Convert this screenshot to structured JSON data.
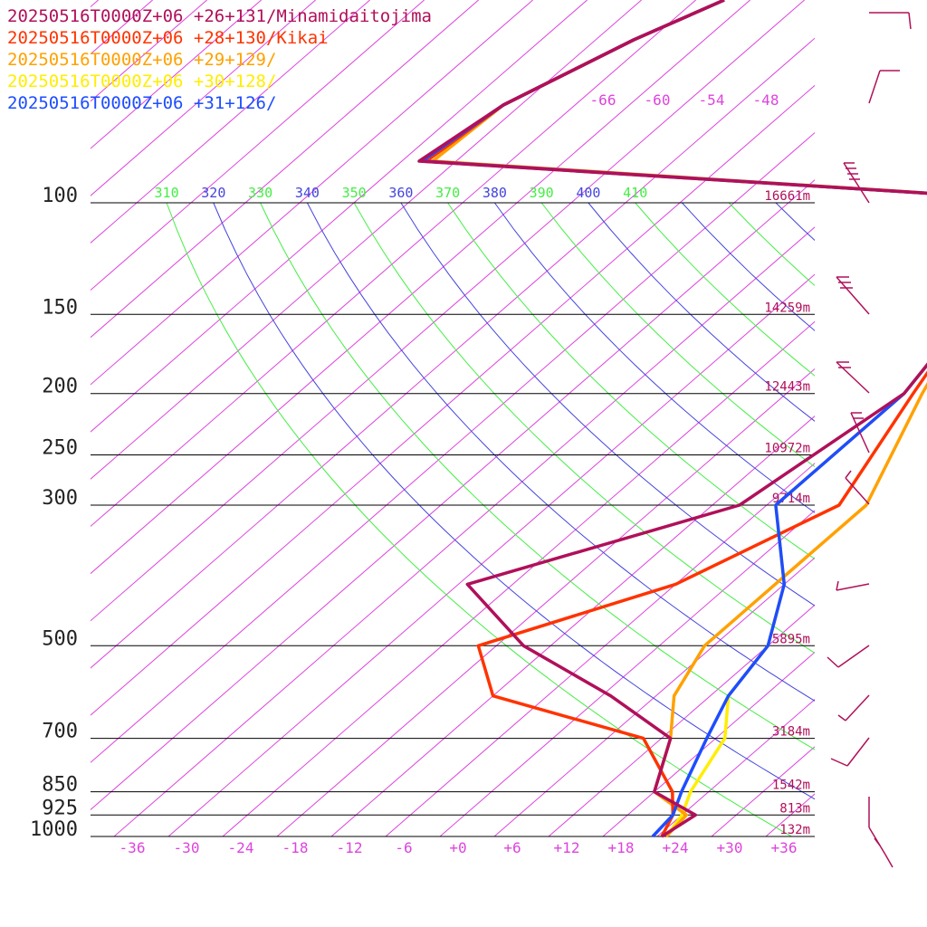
{
  "chart_data": {
    "type": "line",
    "subtype": "skew-T log-p sounding",
    "legend_placement": "top-left",
    "series": [
      {
        "name": "20250516T0000Z+06 +26+131/Minamidaitojima",
        "color": "#b0105a",
        "temperature": [
          [
            1000,
            22.5
          ],
          [
            925,
            23.5
          ],
          [
            850,
            16
          ],
          [
            700,
            11
          ],
          [
            600,
            -1
          ],
          [
            500,
            -17
          ],
          [
            400,
            -31
          ],
          [
            300,
            -11
          ],
          [
            200,
            -7
          ],
          [
            150,
            -10
          ],
          [
            100,
            -12
          ]
        ]
      },
      {
        "name": "20250516T0000Z+06 +28+130/Kikai",
        "color": "#ff3300",
        "temperature": [
          [
            1000,
            22.5
          ],
          [
            925,
            21
          ],
          [
            850,
            18
          ],
          [
            700,
            8
          ],
          [
            600,
            -14
          ],
          [
            500,
            -22
          ],
          [
            400,
            -8
          ],
          [
            300,
            0
          ],
          [
            200,
            -6
          ],
          [
            150,
            -10
          ],
          [
            100,
            -12
          ]
        ]
      },
      {
        "name": "20250516T0000Z+06 +29+129/",
        "color": "#ffa100",
        "temperature": [
          [
            1000,
            23
          ],
          [
            925,
            22.5
          ],
          [
            850,
            16
          ],
          [
            700,
            11
          ],
          [
            600,
            6
          ],
          [
            500,
            3
          ],
          [
            400,
            3
          ],
          [
            300,
            3
          ],
          [
            200,
            -5
          ],
          [
            150,
            -10
          ],
          [
            100,
            -12
          ]
        ]
      },
      {
        "name": "20250516T0000Z+06 +30+128/",
        "color": "#ffee00",
        "temperature": [
          [
            1000,
            23
          ],
          [
            925,
            22
          ],
          [
            850,
            20
          ],
          [
            700,
            17
          ],
          [
            600,
            12
          ],
          [
            500,
            10
          ],
          [
            400,
            4
          ],
          [
            300,
            -7
          ],
          [
            200,
            -7
          ],
          [
            150,
            -10
          ],
          [
            100,
            -12
          ]
        ]
      },
      {
        "name": "20250516T0000Z+06 +31+126/",
        "color": "#1e4dff",
        "temperature": [
          [
            1000,
            21.5
          ],
          [
            925,
            21
          ],
          [
            850,
            19
          ],
          [
            700,
            15
          ],
          [
            600,
            12
          ],
          [
            500,
            10
          ],
          [
            400,
            4
          ],
          [
            300,
            -7
          ],
          [
            200,
            -7
          ],
          [
            150,
            -10
          ],
          [
            100,
            -12
          ]
        ]
      }
    ],
    "upper_trace_color": "#1e4dff",
    "pressure_levels": [
      {
        "p": 100,
        "label": "100",
        "height": "16661m"
      },
      {
        "p": 150,
        "label": "150",
        "height": "14259m"
      },
      {
        "p": 200,
        "label": "200",
        "height": "12443m"
      },
      {
        "p": 250,
        "label": "250",
        "height": "10972m"
      },
      {
        "p": 300,
        "label": "300",
        "height": "9714m"
      },
      {
        "p": 500,
        "label": "500",
        "height": "5895m"
      },
      {
        "p": 700,
        "label": "700",
        "height": "3184m"
      },
      {
        "p": 850,
        "label": "850",
        "height": "1542m"
      },
      {
        "p": 925,
        "label": "925",
        "height": "813m"
      },
      {
        "p": 1000,
        "label": "1000",
        "height": "132m"
      }
    ],
    "x_ticks": [
      "-36",
      "-30",
      "-24",
      "-18",
      "-12",
      "-6",
      "+0",
      "+6",
      "+12",
      "+18",
      "+24",
      "+30",
      "+36"
    ],
    "xlim": [
      -40,
      40
    ],
    "ylim": [
      1000,
      100
    ],
    "y_scale": "log",
    "upper_temp_labels": [
      "-66",
      "-60",
      "-54",
      "-48"
    ],
    "theta_labels": [
      "310",
      "320",
      "330",
      "340",
      "350",
      "360",
      "370",
      "380",
      "390",
      "400",
      "410"
    ],
    "colors": {
      "isotherm": "#dd44dd",
      "theta_green": "#44ee44",
      "theta_blue": "#4444dd",
      "isobar": "#000000",
      "tick_label": "#dd44dd",
      "height_label": "#b0105a",
      "wind_barb": "#b0105a"
    }
  }
}
